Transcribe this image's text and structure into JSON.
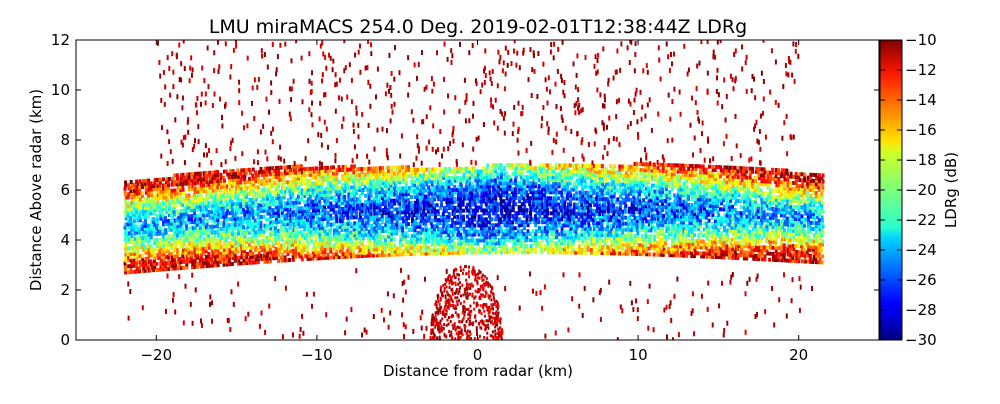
{
  "chart_data": {
    "type": "heatmap",
    "title": "LMU miraMACS 254.0 Deg. 2019-02-01T12:38:44Z  LDRg",
    "xlabel": "Distance from radar (km)",
    "ylabel": "Distance Above radar  (km)",
    "xlim": [
      -25,
      25
    ],
    "ylim": [
      0,
      12
    ],
    "x_ticks": [
      -20,
      -10,
      0,
      10,
      20
    ],
    "x_tick_labels": [
      "−20",
      "−10",
      "0",
      "10",
      "20"
    ],
    "y_ticks": [
      0,
      2,
      4,
      6,
      8,
      10,
      12
    ],
    "y_tick_labels": [
      "0",
      "2",
      "4",
      "6",
      "8",
      "10",
      "12"
    ],
    "colorbar": {
      "label": "LDRg (dB)",
      "range": [
        -30,
        -10
      ],
      "ticks": [
        -10,
        -12,
        -14,
        -16,
        -18,
        -20,
        -22,
        -24,
        -26,
        -28,
        -30
      ],
      "tick_labels": [
        "−10",
        "−12",
        "−14",
        "−16",
        "−18",
        "−20",
        "−22",
        "−24",
        "−26",
        "−28",
        "−30"
      ],
      "colormap": "jet"
    },
    "features": [
      {
        "name": "main cloud layer",
        "x_range": [
          -22,
          21.5
        ],
        "y_range": [
          2.7,
          7.3
        ],
        "ldr_core_db": -28,
        "ldr_edge_db": -12
      },
      {
        "name": "near-radar clutter",
        "x_range": [
          -3,
          1.5
        ],
        "y_range": [
          0,
          3
        ],
        "ldr_db": -10
      },
      {
        "name": "scattered upper echoes",
        "x_range": [
          -20,
          20
        ],
        "y_range": [
          7,
          12
        ],
        "ldr_db": -10
      }
    ]
  }
}
